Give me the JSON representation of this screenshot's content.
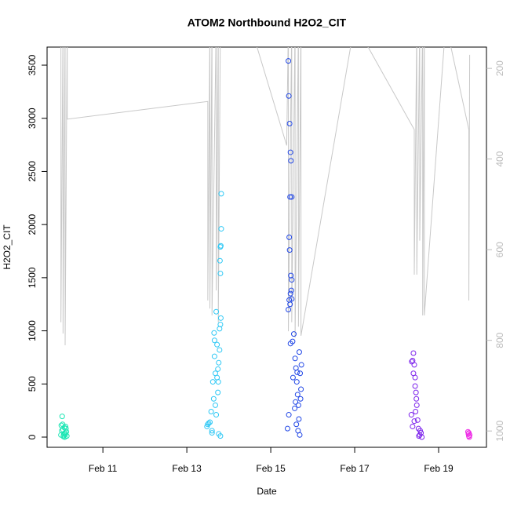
{
  "chart_data": {
    "type": "scatter",
    "title": "ATOM2 Northbound H2O2_CIT",
    "x_label": "Date",
    "y_label": "H2O2_CIT",
    "xlim": [
      9.67,
      20.14
    ],
    "ylim": [
      -96,
      3670
    ],
    "y2lim": [
      1036,
      153
    ],
    "xticks": [
      {
        "value": 11,
        "label": "Feb 11"
      },
      {
        "value": 13,
        "label": "Feb 13"
      },
      {
        "value": 15,
        "label": "Feb 15"
      },
      {
        "value": 17,
        "label": "Feb 17"
      },
      {
        "value": 19,
        "label": "Feb 19"
      }
    ],
    "yticks": [
      0,
      500,
      1000,
      1500,
      2000,
      2500,
      3000,
      3500
    ],
    "y2ticks": [
      200,
      400,
      600,
      800,
      1000
    ],
    "series": [
      {
        "type": "line",
        "axis": "y2",
        "color": "#c8c8c8",
        "x": [
          10.0,
          10.0,
          10.05,
          10.05,
          10.1,
          10.1,
          10.15,
          10.15,
          13.5,
          13.5,
          13.55,
          13.55,
          13.6,
          13.6,
          13.7,
          13.7,
          13.75,
          13.75,
          13.8,
          14.5,
          15.38,
          15.42,
          15.42,
          15.5,
          15.5,
          15.58,
          15.58,
          15.66,
          15.66,
          15.72,
          15.72,
          17.0,
          18.42,
          18.42,
          18.48,
          18.48,
          18.55,
          18.55,
          18.62,
          18.62,
          18.66,
          18.66,
          19.17,
          19.72,
          19.72,
          19.74
        ],
        "values": [
          100,
          760,
          100,
          785,
          100,
          811,
          100,
          312,
          273,
          712,
          100,
          730,
          100,
          745,
          100,
          690,
          100,
          760,
          100,
          100,
          370,
          100,
          780,
          100,
          760,
          100,
          794,
          100,
          770,
          100,
          790,
          100,
          335,
          655,
          100,
          655,
          100,
          580,
          100,
          745,
          100,
          745,
          100,
          335,
          712,
          170
        ]
      },
      {
        "type": "scatter",
        "color": "#1be6b4",
        "x": [
          10.0,
          10.02,
          10.04,
          10.06,
          10.08,
          10.1,
          10.12,
          10.14,
          10.03,
          10.07,
          10.11,
          10.05,
          10.09,
          10.13,
          10.01,
          10.06,
          10.1
        ],
        "values": [
          20,
          60,
          120,
          5,
          90,
          40,
          80,
          10,
          195,
          30,
          100,
          70,
          0,
          50,
          110,
          15,
          25
        ]
      },
      {
        "type": "scatter",
        "color": "#2ec8f5",
        "x": [
          13.5,
          13.52,
          13.48,
          13.55,
          13.6,
          13.62,
          13.65,
          13.66,
          13.68,
          13.7,
          13.72,
          13.74,
          13.75,
          13.76,
          13.78,
          13.8,
          13.82,
          13.82,
          13.81,
          13.8,
          13.79,
          13.8,
          13.81,
          13.78,
          13.74,
          13.7,
          13.66,
          13.64,
          13.6,
          13.58,
          13.76,
          13.8,
          13.72,
          13.68
        ],
        "values": [
          120,
          130,
          100,
          140,
          60,
          520,
          980,
          760,
          300,
          1180,
          870,
          640,
          520,
          30,
          1020,
          1060,
          2290,
          1960,
          1800,
          1790,
          1660,
          1540,
          1120,
          820,
          420,
          210,
          910,
          360,
          40,
          240,
          700,
          10,
          560,
          600
        ]
      },
      {
        "type": "scatter",
        "color": "#2147e6",
        "x": [
          15.42,
          15.43,
          15.45,
          15.47,
          15.48,
          15.5,
          15.46,
          15.44,
          15.45,
          15.48,
          15.5,
          15.42,
          15.44,
          15.46,
          15.47,
          15.49,
          15.5,
          15.52,
          15.55,
          15.58,
          15.6,
          15.62,
          15.64,
          15.66,
          15.68,
          15.7,
          15.72,
          15.4,
          15.43,
          15.47,
          15.53,
          15.57,
          15.61,
          15.65,
          15.69,
          15.73,
          15.71,
          15.67,
          15.63,
          15.59
        ],
        "values": [
          3540,
          3210,
          2950,
          2680,
          2600,
          2260,
          2260,
          1880,
          1760,
          1520,
          1480,
          1200,
          1290,
          1250,
          1350,
          1380,
          1300,
          900,
          970,
          740,
          650,
          520,
          400,
          300,
          800,
          600,
          450,
          80,
          210,
          880,
          560,
          270,
          120,
          60,
          20,
          680,
          360,
          170,
          610,
          330
        ]
      },
      {
        "type": "scatter",
        "color": "#7d24ec",
        "x": [
          18.35,
          18.38,
          18.4,
          18.42,
          18.44,
          18.46,
          18.48,
          18.5,
          18.52,
          18.55,
          18.58,
          18.6,
          18.42,
          18.45,
          18.38,
          18.4,
          18.47,
          18.53,
          18.56,
          18.44,
          18.36
        ],
        "values": [
          210,
          720,
          790,
          680,
          560,
          420,
          300,
          160,
          80,
          20,
          40,
          0,
          150,
          240,
          100,
          600,
          360,
          10,
          60,
          480,
          710
        ]
      },
      {
        "type": "scatter",
        "color": "#ee2ce6",
        "x": [
          19.7,
          19.71,
          19.72,
          19.73,
          19.74,
          19.72
        ],
        "values": [
          50,
          30,
          10,
          0,
          20,
          40
        ]
      }
    ]
  }
}
